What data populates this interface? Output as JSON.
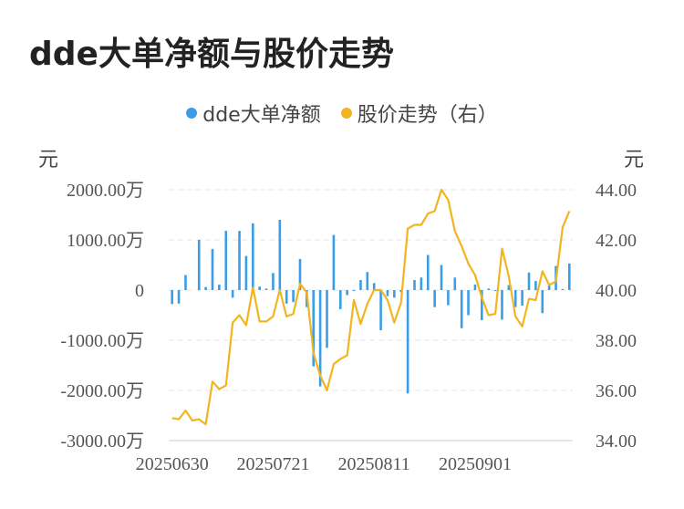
{
  "title": "dde大单净额与股价走势",
  "legend": {
    "series1": "dde大单净额",
    "series2": "股价走势（右）"
  },
  "units": {
    "left": "元",
    "right": "元"
  },
  "colors": {
    "bar": "#3b9de6",
    "line": "#f2b51f",
    "grid": "#e4e4e4"
  },
  "chart_data": {
    "type": "bar+line",
    "y_left": {
      "ylim": [
        -3000,
        2000
      ],
      "ticks": [
        2000,
        1000,
        0,
        -1000,
        -2000,
        -3000
      ],
      "tick_labels": [
        "2000.00万",
        "1000.00万",
        "0",
        "-1000.00万",
        "-2000.00万",
        "-3000.00万"
      ]
    },
    "y_right": {
      "ylim": [
        34,
        44
      ],
      "ticks": [
        44,
        42,
        40,
        38,
        36,
        34
      ],
      "tick_labels": [
        "44.00",
        "42.00",
        "40.00",
        "38.00",
        "36.00",
        "34.00"
      ]
    },
    "x_tick_labels": [
      {
        "label": "20250630",
        "index": 0
      },
      {
        "label": "20250721",
        "index": 15
      },
      {
        "label": "20250811",
        "index": 30
      },
      {
        "label": "20250901",
        "index": 45
      }
    ],
    "series": [
      {
        "name": "dde大单净额",
        "kind": "bar",
        "axis": "left",
        "values": [
          -280,
          -270,
          300,
          0,
          1000,
          60,
          820,
          110,
          1180,
          -150,
          1180,
          680,
          1330,
          70,
          30,
          340,
          1400,
          -270,
          -240,
          620,
          -340,
          -1520,
          -1920,
          -1150,
          1100,
          -380,
          -100,
          -20,
          200,
          360,
          140,
          -800,
          -120,
          -150,
          -40,
          -2060,
          200,
          250,
          700,
          -340,
          500,
          -300,
          250,
          -760,
          -500,
          110,
          -600,
          30,
          -20,
          -590,
          100,
          -340,
          -310,
          350,
          180,
          -460,
          120,
          480,
          20,
          530
        ]
      },
      {
        "name": "股价走势（右）",
        "kind": "line",
        "axis": "right",
        "values": [
          34.9,
          34.85,
          35.2,
          34.8,
          34.85,
          34.65,
          36.35,
          36.05,
          36.2,
          38.7,
          39.0,
          38.6,
          40.1,
          38.75,
          38.75,
          38.95,
          40.0,
          38.95,
          39.05,
          40.25,
          39.9,
          37.5,
          36.6,
          36.0,
          37.05,
          37.25,
          37.4,
          39.6,
          38.65,
          39.45,
          40.0,
          40.0,
          39.6,
          38.7,
          39.5,
          42.45,
          42.6,
          42.6,
          43.05,
          43.15,
          44.0,
          43.6,
          42.35,
          41.75,
          41.05,
          40.6,
          39.7,
          39.0,
          39.05,
          41.65,
          40.55,
          38.95,
          38.55,
          39.65,
          39.6,
          40.75,
          40.2,
          40.35,
          42.5,
          43.15
        ]
      }
    ]
  }
}
